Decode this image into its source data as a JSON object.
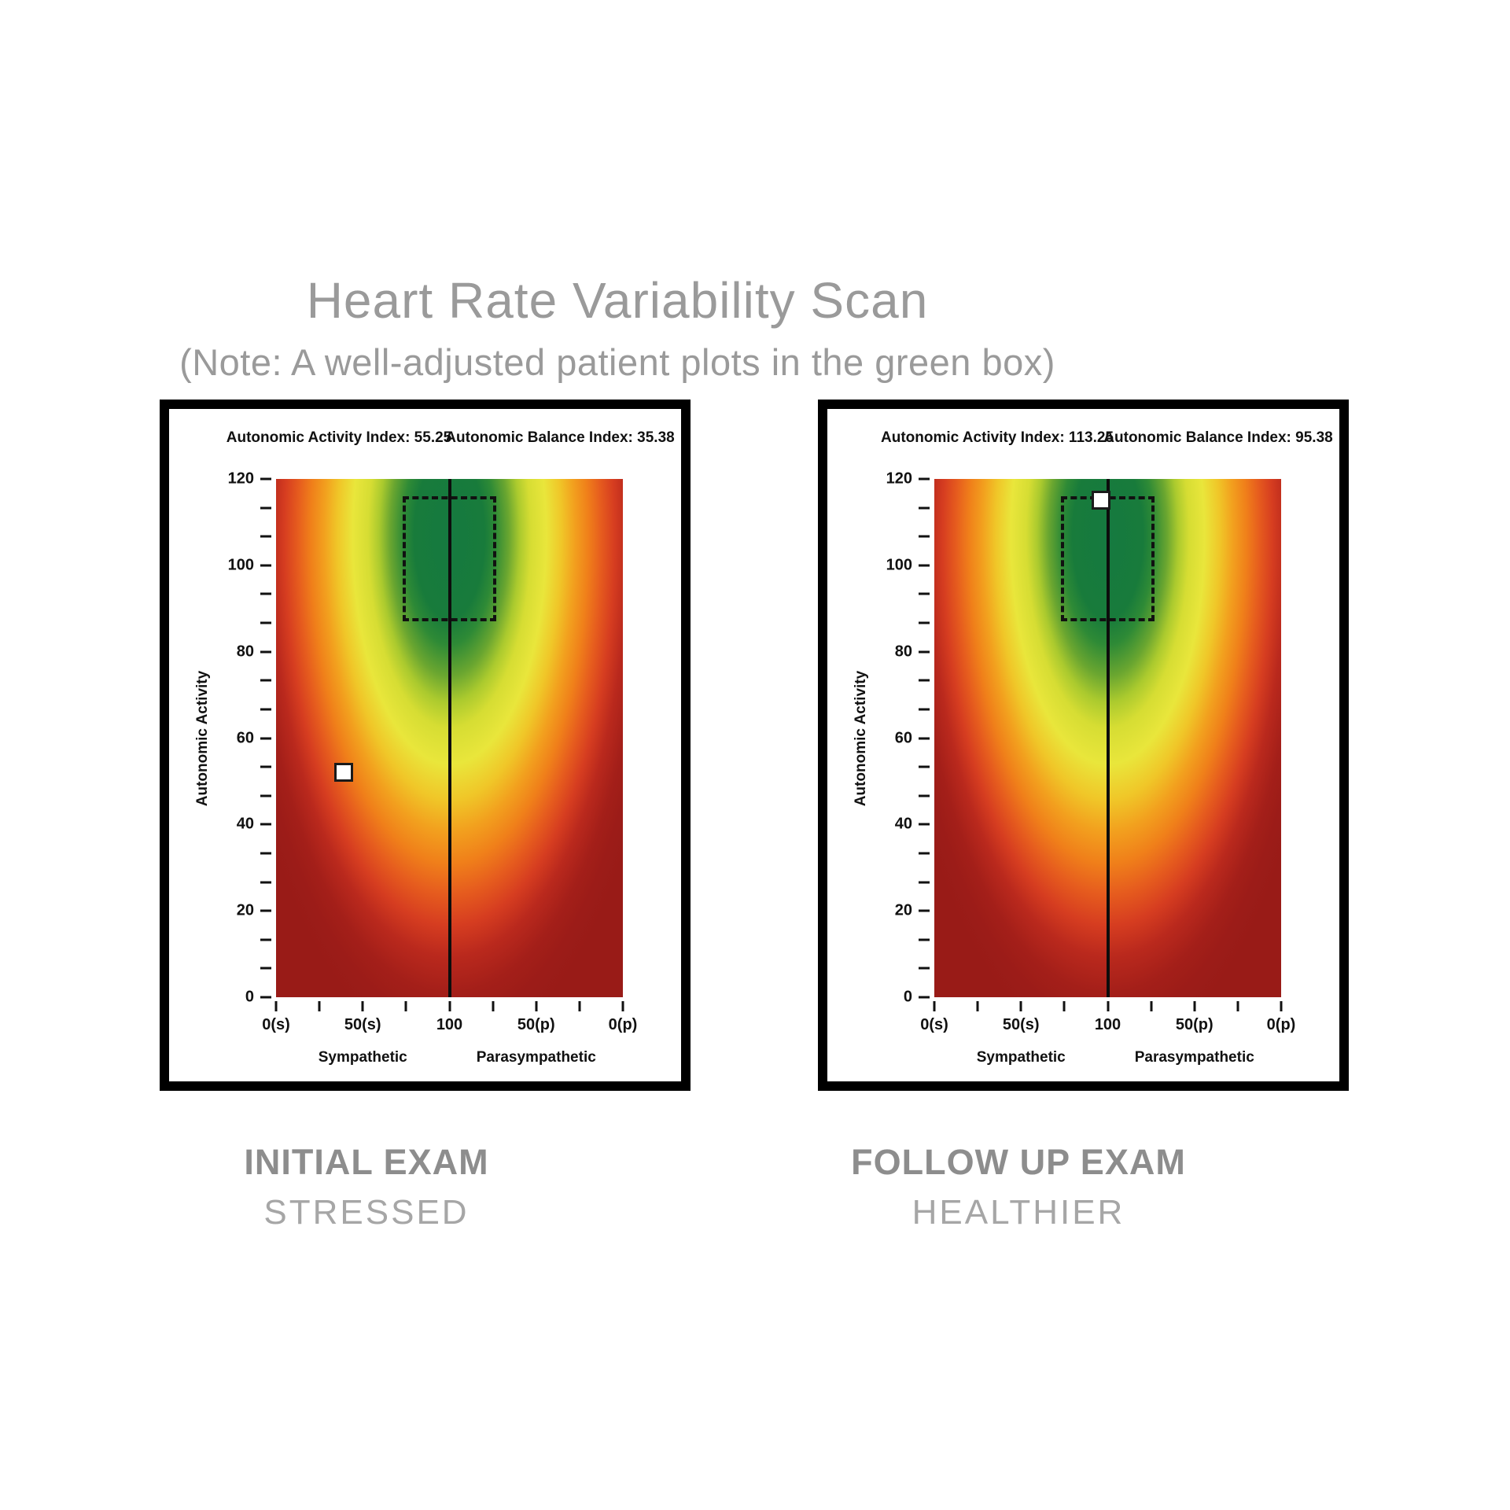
{
  "page": {
    "title": "Heart Rate Variability Scan",
    "subtitle": "(Note: A well-adjusted patient plots in the green box)"
  },
  "panels": [
    {
      "activity_index_text": "Autonomic Activity Index: 55.25",
      "balance_index_text": "Autonomic Balance Index: 35.38",
      "caption_title": "INITIAL EXAM",
      "caption_subtitle": "STRESSED"
    },
    {
      "activity_index_text": "Autonomic Activity Index: 113.25",
      "balance_index_text": "Autonomic Balance Index: 95.38",
      "caption_title": "FOLLOW UP EXAM",
      "caption_subtitle": "HEALTHIER"
    }
  ],
  "axis": {
    "y_label": "Autonomic Activity",
    "x_group_left": "Sympathetic",
    "x_group_right": "Parasympathetic"
  },
  "chart_data": {
    "type": "heatmap",
    "title": "Heart Rate Variability Scan",
    "subtitle": "(Note: A well-adjusted patient plots in the green box)",
    "ylabel": "Autonomic Activity",
    "ylim": [
      0,
      120
    ],
    "y_tick_labels": [
      120,
      100,
      80,
      60,
      40,
      20,
      0
    ],
    "y_minor_ticks_between_majors": 2,
    "x_range_units": 200,
    "x_tick_labels": [
      "0(s)",
      "50(s)",
      "100",
      "50(p)",
      "0(p)"
    ],
    "x_minor_ticks_between_majors": 1,
    "x_group_labels": [
      "Sympathetic",
      "Parasympathetic"
    ],
    "center_line_x": 100,
    "green_box": {
      "x_min": 73,
      "x_max": 127,
      "y_min": 87,
      "y_max": 116
    },
    "colormap_center_to_edge": [
      "#157a40",
      "#6aa630",
      "#e9e63b",
      "#f0c628",
      "#f0801a",
      "#e65c1e",
      "#ba291d",
      "#991b17"
    ],
    "legend": "green center = optimal autonomic state, dark red edge = poor",
    "charts": [
      {
        "name": "INITIAL EXAM - STRESSED",
        "autonomic_activity_index": 55.25,
        "autonomic_balance_index": 35.38,
        "marker": {
          "x": 39,
          "y": 52
        }
      },
      {
        "name": "FOLLOW UP EXAM - HEALTHIER",
        "autonomic_activity_index": 113.25,
        "autonomic_balance_index": 95.38,
        "marker": {
          "x": 96,
          "y": 115
        }
      }
    ]
  },
  "colors": {
    "title_gray": "#9a9a9a",
    "caption_bold_gray": "#8d8d8d",
    "caption_light_gray": "#a6a6a6",
    "marker_fill": "#ffffff",
    "marker_border": "#1a1a1a",
    "panel_border": "#000000"
  }
}
